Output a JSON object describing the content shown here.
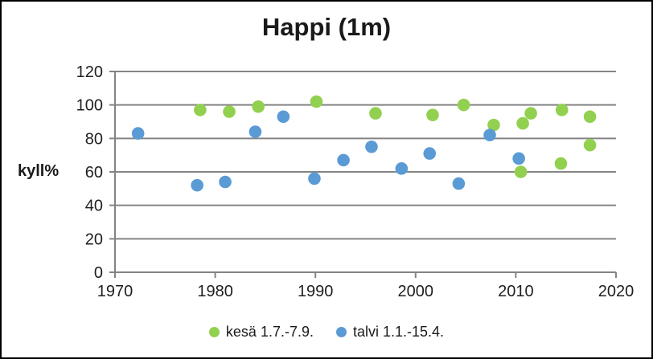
{
  "title": "Happi (1m)",
  "ylabel": "kyll%",
  "colors": {
    "background": "#ffffff",
    "border": "#000000",
    "grid": "#848484",
    "axis": "#848484",
    "text": "#1f1f1f",
    "series_kesa": "#92D050",
    "series_talvi": "#5B9BD5"
  },
  "chart_data": {
    "type": "scatter",
    "title": "Happi (1m)",
    "xlabel": "",
    "ylabel": "kyll%",
    "xlim": [
      1970,
      2020
    ],
    "ylim": [
      0,
      120
    ],
    "xticks": [
      1970,
      1980,
      1990,
      2000,
      2010,
      2020
    ],
    "yticks": [
      0,
      20,
      40,
      60,
      80,
      100,
      120
    ],
    "grid": "horizontal",
    "legend_position": "bottom",
    "series": [
      {
        "name": "kesä 1.7.-7.9.",
        "color": "#92D050",
        "points": [
          [
            1978.5,
            97
          ],
          [
            1981.4,
            96
          ],
          [
            1984.3,
            99
          ],
          [
            1990.1,
            102
          ],
          [
            1996.0,
            95
          ],
          [
            2001.7,
            94
          ],
          [
            2004.8,
            100
          ],
          [
            2007.8,
            88
          ],
          [
            2010.5,
            60
          ],
          [
            2010.7,
            89
          ],
          [
            2011.5,
            95
          ],
          [
            2014.5,
            65
          ],
          [
            2014.6,
            97
          ],
          [
            2017.4,
            76
          ],
          [
            2017.4,
            93
          ]
        ]
      },
      {
        "name": "talvi 1.1.-15.4.",
        "color": "#5B9BD5",
        "points": [
          [
            1972.3,
            83
          ],
          [
            1978.2,
            52
          ],
          [
            1981.0,
            54
          ],
          [
            1984.0,
            84
          ],
          [
            1986.8,
            93
          ],
          [
            1989.9,
            56
          ],
          [
            1992.8,
            67
          ],
          [
            1995.6,
            75
          ],
          [
            1998.6,
            62
          ],
          [
            2001.4,
            71
          ],
          [
            2004.3,
            53
          ],
          [
            2007.4,
            82
          ],
          [
            2010.3,
            68
          ]
        ]
      }
    ]
  }
}
